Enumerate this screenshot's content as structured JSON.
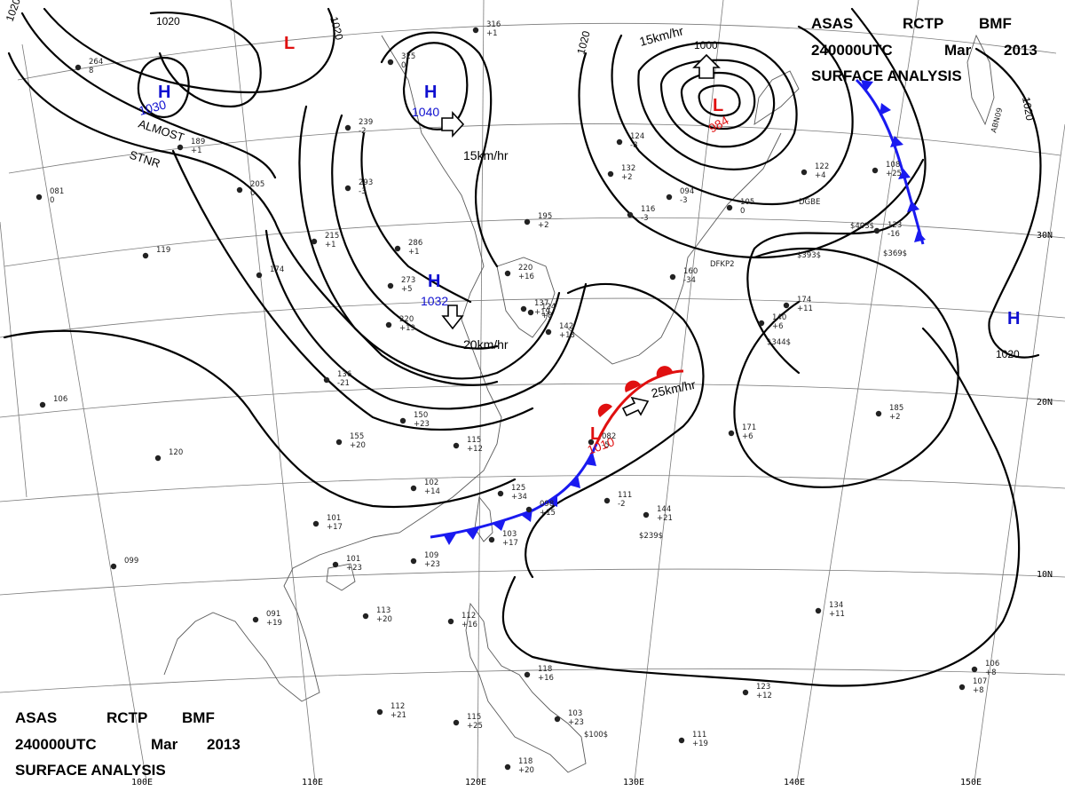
{
  "title_top": {
    "line1": [
      "ASAS",
      "RCTP",
      "BMF"
    ],
    "line2": [
      "240000UTC",
      "Mar",
      "2013"
    ],
    "line3": "SURFACE ANALYSIS"
  },
  "title_bottom": {
    "line1": [
      "ASAS",
      "RCTP",
      "BMF"
    ],
    "line2": [
      "240000UTC",
      "Mar",
      "2013"
    ],
    "line3": "SURFACE ANALYSIS"
  },
  "grid_labels": {
    "lon": [
      "100E",
      "110E",
      "120E",
      "130E",
      "140E",
      "150E"
    ],
    "lat": [
      "30N",
      "20N",
      "10N"
    ]
  },
  "pressure_centers": [
    {
      "type": "L",
      "value": "",
      "color": "#e01010"
    },
    {
      "type": "H",
      "value": "1030",
      "color": "#1010d0"
    },
    {
      "type": "H",
      "value": "1040",
      "color": "#1010d0"
    },
    {
      "type": "L",
      "value": "984",
      "color": "#e01010"
    },
    {
      "type": "H",
      "value": "1032",
      "color": "#1010d0"
    },
    {
      "type": "L",
      "value": "1010",
      "color": "#e01010"
    },
    {
      "type": "H",
      "value": "",
      "color": "#1010d0"
    }
  ],
  "isobar_labels": [
    "1020",
    "1020",
    "1020",
    "1020",
    "1000",
    "1020",
    "1020"
  ],
  "motion_labels": [
    "15km/hr",
    "15km/hr",
    "20km/hr",
    "25km/hr"
  ],
  "note": [
    "ALMOST",
    "STNR"
  ],
  "stations": [
    {
      "t": "264",
      "b": "8"
    },
    {
      "t": "189",
      "b": "+1"
    },
    {
      "t": "205",
      "b": "0"
    },
    {
      "t": "316",
      "b": "+1"
    },
    {
      "t": "325",
      "b": "0"
    },
    {
      "t": "239",
      "b": "-2"
    },
    {
      "t": "293",
      "b": "-3"
    },
    {
      "t": "215",
      "b": "+1"
    },
    {
      "t": "286",
      "b": "+1"
    },
    {
      "t": "273",
      "b": "+5"
    },
    {
      "t": "220",
      "b": "+19"
    },
    {
      "t": "195",
      "b": "+2"
    },
    {
      "t": "220",
      "b": "+16"
    },
    {
      "t": "137",
      "b": "+19"
    },
    {
      "t": "136",
      "b": "-21"
    },
    {
      "t": "150",
      "b": "+23"
    },
    {
      "t": "155",
      "b": "+20"
    },
    {
      "t": "115",
      "b": "+12"
    },
    {
      "t": "102",
      "b": "+14"
    },
    {
      "t": "125",
      "b": "+34"
    },
    {
      "t": "098",
      "b": "+15"
    },
    {
      "t": "101",
      "b": "+17"
    },
    {
      "t": "101",
      "b": "+23"
    },
    {
      "t": "109",
      "b": "+23"
    },
    {
      "t": "103",
      "b": "+17"
    },
    {
      "t": "113",
      "b": "+20"
    },
    {
      "t": "091",
      "b": "+19"
    },
    {
      "t": "099",
      "b": ""
    },
    {
      "t": "106",
      "b": ""
    },
    {
      "t": "120",
      "b": ""
    },
    {
      "t": "119",
      "b": ""
    },
    {
      "t": "174",
      "b": ""
    },
    {
      "t": "112",
      "b": "+21"
    },
    {
      "t": "115",
      "b": "+25"
    },
    {
      "t": "118",
      "b": "+20"
    },
    {
      "t": "103",
      "b": "+23"
    },
    {
      "t": "118",
      "b": "+16"
    },
    {
      "t": "112",
      "b": "+16"
    },
    {
      "t": "111",
      "b": "+19"
    },
    {
      "t": "123",
      "b": "+12"
    },
    {
      "t": "134",
      "b": "+11"
    },
    {
      "t": "144",
      "b": "+21"
    },
    {
      "t": "171",
      "b": "+6"
    },
    {
      "t": "185",
      "b": "+2"
    },
    {
      "t": "174",
      "b": "+11"
    },
    {
      "t": "140",
      "b": "+6"
    },
    {
      "t": "123",
      "b": "-16"
    },
    {
      "t": "108",
      "b": "+25"
    },
    {
      "t": "122",
      "b": "+4"
    },
    {
      "t": "105",
      "b": "0"
    },
    {
      "t": "160",
      "b": "-34"
    },
    {
      "t": "132",
      "b": "+2"
    },
    {
      "t": "124",
      "b": "-8"
    },
    {
      "t": "116",
      "b": "-3"
    },
    {
      "t": "094",
      "b": "-3"
    },
    {
      "t": "142",
      "b": "+13"
    },
    {
      "t": "124",
      "b": "+8"
    },
    {
      "t": "082",
      "b": "-5"
    },
    {
      "t": "111",
      "b": "-2"
    },
    {
      "t": "107",
      "b": "+8"
    },
    {
      "t": "081",
      "b": "0"
    },
    {
      "t": "106",
      "b": "+8"
    }
  ],
  "station_codes": [
    "DGBE",
    "DFKP2",
    "ABN09",
    "$393$",
    "$403$",
    "$369$",
    "$344$",
    "$239$",
    "$100$"
  ],
  "colors": {
    "high": "#1010d0",
    "low": "#e01010",
    "cold_front": "#1a1af0",
    "warm_front": "#e01010",
    "isobar": "#000000",
    "graticule": "#7a7a7a"
  }
}
